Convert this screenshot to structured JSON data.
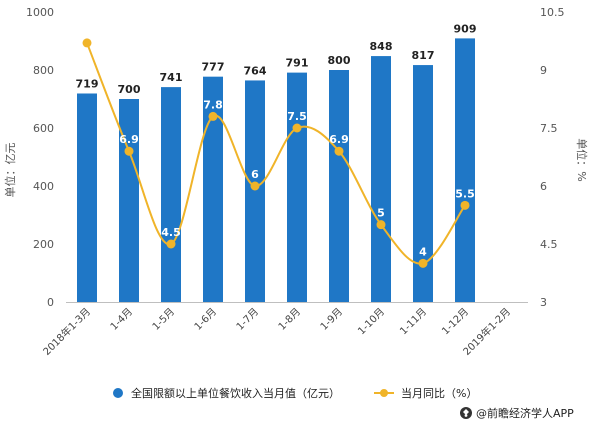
{
  "chart_data": {
    "type": "bar",
    "categories": [
      "2018年1-3月",
      "1-4月",
      "1-5月",
      "1-6月",
      "1-7月",
      "1-8月",
      "1-9月",
      "1-10月",
      "1-11月",
      "1-12月",
      "2019年1-2月"
    ],
    "series": [
      {
        "name": "全国限额以上单位餐饮收入当月值（亿元）",
        "type": "bar",
        "axis": "left",
        "color": "#1F77C6",
        "values": [
          719,
          700,
          741,
          777,
          764,
          791,
          800,
          848,
          817,
          909,
          null
        ]
      },
      {
        "name": "当月同比（%）",
        "type": "line",
        "axis": "right",
        "color": "#F0B429",
        "values": [
          9.7,
          6.9,
          4.5,
          7.8,
          6,
          7.5,
          6.9,
          5,
          4,
          5.5,
          null
        ]
      }
    ],
    "ylabel": "单位：亿元",
    "y2label": "单位：%",
    "ylim": [
      0,
      1000
    ],
    "y2lim": [
      3,
      10.5
    ],
    "yticks": [
      "0",
      "200",
      "400",
      "600",
      "800",
      "1000"
    ],
    "y2ticks": [
      "3",
      "4.5",
      "6",
      "7.5",
      "9",
      "10.5"
    ],
    "legend_position": "bottom",
    "grid": false
  },
  "source": {
    "text": "@前瞻经济学人APP",
    "icon": "prospective-logo-icon"
  }
}
